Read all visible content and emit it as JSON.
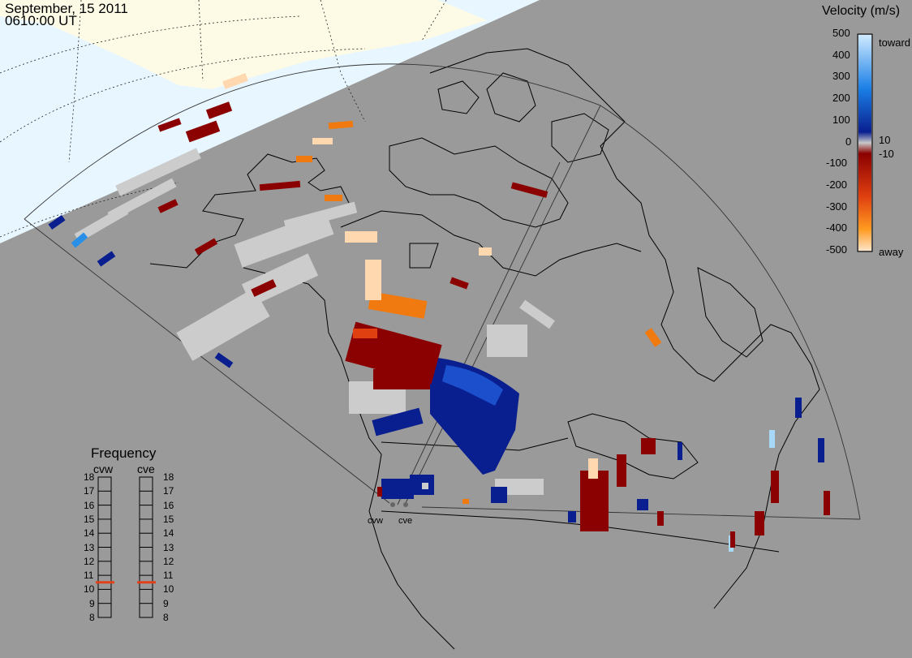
{
  "header": {
    "date": "September, 15 2011",
    "time": "0610:00 UT"
  },
  "colorbar": {
    "title": "Velocity (m/s)",
    "ticks": [
      "500",
      "400",
      "300",
      "200",
      "100",
      "0",
      "-100",
      "-200",
      "-300",
      "-400",
      "-500"
    ],
    "inner_ticks": [
      "10",
      "-10"
    ],
    "toward_label": "toward",
    "away_label": "away"
  },
  "frequency": {
    "title": "Frequency",
    "radars": [
      {
        "name": "cvw",
        "value_mhz": 10.5
      },
      {
        "name": "cve",
        "value_mhz": 10.5
      }
    ],
    "scale": [
      "18",
      "17",
      "16",
      "15",
      "14",
      "13",
      "12",
      "11",
      "10",
      "9",
      "8"
    ]
  },
  "stations": [
    {
      "label": "cvw"
    },
    {
      "label": "cve"
    }
  ],
  "colors": {
    "background": "#9a9a9a",
    "sunlit": "#e8f6ff",
    "land_sunlit": "#fdfbe6",
    "ground_scatter": "#cccccc",
    "frequency_marker": "#e0401a"
  }
}
